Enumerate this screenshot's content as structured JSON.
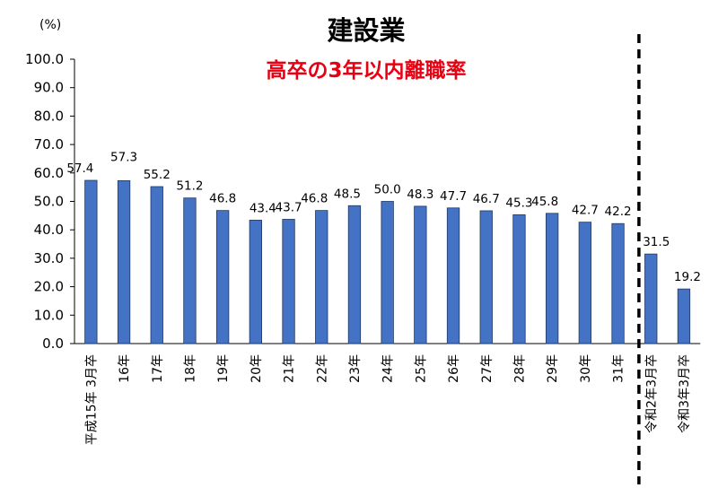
{
  "chart_data": {
    "type": "bar",
    "title": "建設業",
    "subtitle": "高卒の3年以内離職率",
    "ylabel": "(%)",
    "ylim": [
      0,
      100
    ],
    "yticks": [
      "0.0",
      "10.0",
      "20.0",
      "30.0",
      "40.0",
      "50.0",
      "60.0",
      "70.0",
      "80.0",
      "90.0",
      "100.0"
    ],
    "categories": [
      "平成15年 3月卒",
      "16年",
      "17年",
      "18年",
      "19年",
      "20年",
      "21年",
      "22年",
      "23年",
      "24年",
      "25年",
      "26年",
      "27年",
      "28年",
      "29年",
      "30年",
      "31年",
      "令和2年3月卒",
      "令和3年3月卒"
    ],
    "values": [
      57.4,
      57.3,
      55.2,
      51.2,
      46.8,
      43.4,
      43.7,
      46.8,
      48.5,
      50.0,
      48.3,
      47.7,
      46.7,
      45.3,
      45.8,
      42.7,
      42.2,
      31.5,
      19.2
    ],
    "value_labels": [
      "57.4",
      "57.3",
      "55.2",
      "51.2",
      "46.8",
      "43.4",
      "43.7",
      "46.8",
      "48.5",
      "50.0",
      "48.3",
      "47.7",
      "46.7",
      "45.3",
      "45.8",
      "42.7",
      "42.2",
      "31.5",
      "19.2"
    ],
    "grid": false,
    "legend": "none",
    "colors": {
      "bar": "#4472C4",
      "bar_edge": "#1F3864",
      "subtitle": "#E60012",
      "divider": "#000000"
    }
  }
}
